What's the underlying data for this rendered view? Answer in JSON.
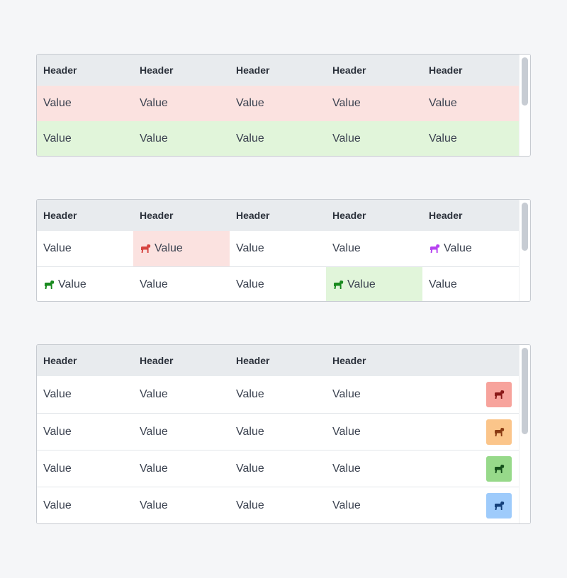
{
  "colors": {
    "header_bg": "#e8ebee",
    "tint_red": "#fbe2e0",
    "tint_green": "#e1f5da",
    "dog_red": "#d64541",
    "dog_purple": "#b642f0",
    "dog_green": "#188a1e"
  },
  "table1": {
    "headers": [
      "Header",
      "Header",
      "Header",
      "Header",
      "Header"
    ],
    "rows": [
      [
        "Value",
        "Value",
        "Value",
        "Value",
        "Value"
      ],
      [
        "Value",
        "Value",
        "Value",
        "Value",
        "Value"
      ]
    ]
  },
  "table2": {
    "headers": [
      "Header",
      "Header",
      "Header",
      "Header",
      "Header"
    ],
    "rows": [
      [
        "Value",
        "Value",
        "Value",
        "Value",
        "Value"
      ],
      [
        "Value",
        "Value",
        "Value",
        "Value",
        "Value"
      ]
    ]
  },
  "table3": {
    "headers": [
      "Header",
      "Header",
      "Header",
      "Header"
    ],
    "rows": [
      [
        "Value",
        "Value",
        "Value",
        "Value"
      ],
      [
        "Value",
        "Value",
        "Value",
        "Value"
      ],
      [
        "Value",
        "Value",
        "Value",
        "Value"
      ],
      [
        "Value",
        "Value",
        "Value",
        "Value"
      ]
    ],
    "action_buttons": [
      {
        "icon": "dog-icon",
        "bg": "#f7a39c",
        "fg": "#8a1818"
      },
      {
        "icon": "dog-icon",
        "bg": "#fbc58a",
        "fg": "#8a3a12"
      },
      {
        "icon": "dog-icon",
        "bg": "#97d98a",
        "fg": "#14501a"
      },
      {
        "icon": "dog-icon",
        "bg": "#9ecbfb",
        "fg": "#14407a"
      }
    ]
  }
}
